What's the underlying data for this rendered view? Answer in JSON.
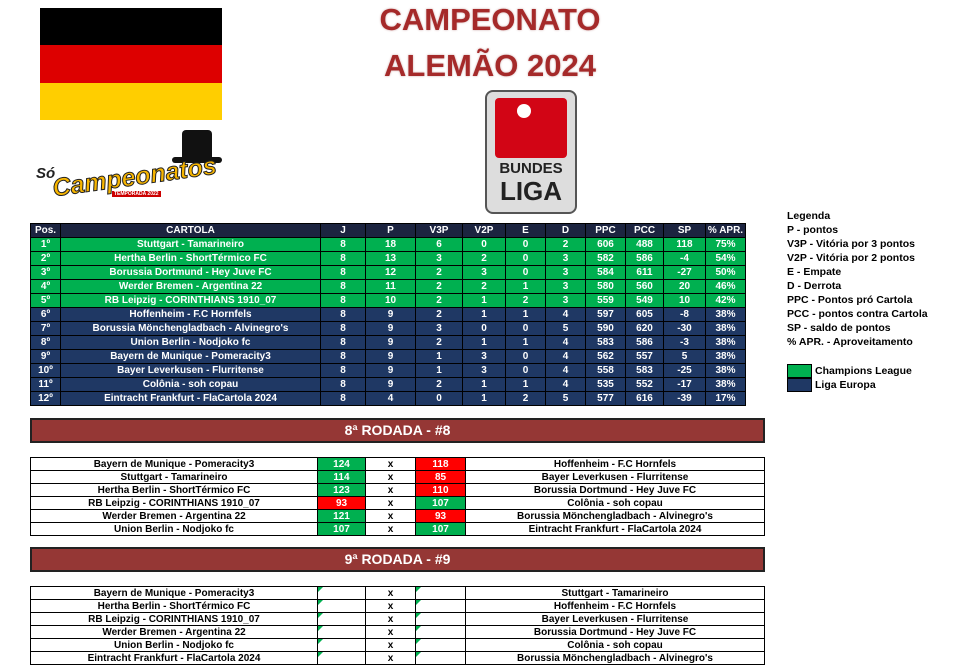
{
  "header": {
    "title_line1": "CAMPEONATO",
    "title_line2": "ALEMÃO 2024",
    "logo_small": "Só",
    "logo_main": "Campeonatos",
    "logo_season": "TEMPORADA 2022",
    "league_logo_top": "BUNDES",
    "league_logo_bottom": "LIGA"
  },
  "standings": {
    "columns": [
      "Pos.",
      "CARTOLA",
      "J",
      "P",
      "V3P",
      "V2P",
      "E",
      "D",
      "PPC",
      "PCC",
      "SP",
      "% APR."
    ],
    "rows": [
      {
        "color": "#00b050",
        "cells": [
          "1º",
          "Stuttgart - Tamarineiro",
          8,
          18,
          6,
          0,
          0,
          2,
          606,
          488,
          118,
          "75%"
        ]
      },
      {
        "color": "#00b050",
        "cells": [
          "2º",
          "Hertha Berlin - ShortTérmico FC",
          8,
          13,
          3,
          2,
          0,
          3,
          582,
          586,
          -4,
          "54%"
        ]
      },
      {
        "color": "#00b050",
        "cells": [
          "3º",
          "Borussia Dortmund - Hey Juve FC",
          8,
          12,
          2,
          3,
          0,
          3,
          584,
          611,
          -27,
          "50%"
        ]
      },
      {
        "color": "#00b050",
        "cells": [
          "4º",
          "Werder Bremen - Argentina 22",
          8,
          11,
          2,
          2,
          1,
          3,
          580,
          560,
          20,
          "46%"
        ]
      },
      {
        "color": "#00b050",
        "cells": [
          "5º",
          "RB Leipzig - CORINTHIANS 1910_07",
          8,
          10,
          2,
          1,
          2,
          3,
          559,
          549,
          10,
          "42%"
        ]
      },
      {
        "color": "#1f3864",
        "cells": [
          "6º",
          "Hoffenheim - F.C Hornfels",
          8,
          9,
          2,
          1,
          1,
          4,
          597,
          605,
          -8,
          "38%"
        ]
      },
      {
        "color": "#1f3864",
        "cells": [
          "7º",
          "Borussia Mönchengladbach - Alvinegro's",
          8,
          9,
          3,
          0,
          0,
          5,
          590,
          620,
          -30,
          "38%"
        ]
      },
      {
        "color": "#1f3864",
        "cells": [
          "8º",
          "Union Berlin - Nodjoko fc",
          8,
          9,
          2,
          1,
          1,
          4,
          583,
          586,
          -3,
          "38%"
        ]
      },
      {
        "color": "#1f3864",
        "cells": [
          "9º",
          "Bayern de Munique - Pomeracity3",
          8,
          9,
          1,
          3,
          0,
          4,
          562,
          557,
          5,
          "38%"
        ]
      },
      {
        "color": "#1f3864",
        "cells": [
          "10º",
          "Bayer Leverkusen - Flurritense",
          8,
          9,
          1,
          3,
          0,
          4,
          558,
          583,
          -25,
          "38%"
        ]
      },
      {
        "color": "#1f3864",
        "cells": [
          "11º",
          "Colônia - soh copau",
          8,
          9,
          2,
          1,
          1,
          4,
          535,
          552,
          -17,
          "38%"
        ]
      },
      {
        "color": "#1f3864",
        "cells": [
          "12º",
          "Eintracht Frankfurt - FlaCartola 2024",
          8,
          4,
          0,
          1,
          2,
          5,
          577,
          616,
          -39,
          "17%"
        ]
      }
    ]
  },
  "legend": {
    "title": "Legenda",
    "items": [
      "P - pontos",
      "V3P - Vitória por 3 pontos",
      "V2P - Vitória por 2 pontos",
      "E - Empate",
      "D - Derrota",
      "PPC - Pontos pró Cartola",
      "PCC - pontos contra Cartola",
      "SP - saldo de pontos",
      "% APR. - Aproveitamento"
    ],
    "zones": [
      {
        "color": "#00b050",
        "label": "Champions League"
      },
      {
        "color": "#1f3864",
        "label": "Liga Europa"
      }
    ]
  },
  "rounds": [
    {
      "title": "8ª RODADA - #8",
      "separator": "x",
      "matches": [
        {
          "home": "Bayern de Munique - Pomeracity3",
          "home_score": 124,
          "away_score": 118,
          "away": "Hoffenheim - F.C Hornfels"
        },
        {
          "home": "Stuttgart - Tamarineiro",
          "home_score": 114,
          "away_score": 85,
          "away": "Bayer Leverkusen - Flurritense"
        },
        {
          "home": "Hertha Berlin - ShortTérmico FC",
          "home_score": 123,
          "away_score": 110,
          "away": "Borussia Dortmund - Hey Juve FC"
        },
        {
          "home": "RB Leipzig - CORINTHIANS 1910_07",
          "home_score": 93,
          "away_score": 107,
          "away": "Colônia - soh copau"
        },
        {
          "home": "Werder Bremen - Argentina 22",
          "home_score": 121,
          "away_score": 93,
          "away": "Borussia Mönchengladbach - Alvinegro's"
        },
        {
          "home": "Union Berlin - Nodjoko fc",
          "home_score": 107,
          "away_score": 107,
          "away": "Eintracht Frankfurt - FlaCartola 2024"
        }
      ]
    },
    {
      "title": "9ª RODADA - #9",
      "separator": "x",
      "matches": [
        {
          "home": "Bayern de Munique - Pomeracity3",
          "away": "Stuttgart - Tamarineiro"
        },
        {
          "home": "Hertha Berlin - ShortTérmico FC",
          "away": "Hoffenheim - F.C Hornfels"
        },
        {
          "home": "RB Leipzig - CORINTHIANS 1910_07",
          "away": "Bayer Leverkusen - Flurritense"
        },
        {
          "home": "Werder Bremen - Argentina 22",
          "away": "Borussia Dortmund - Hey Juve FC"
        },
        {
          "home": "Union Berlin - Nodjoko fc",
          "away": "Colônia - soh copau"
        },
        {
          "home": "Eintracht Frankfurt - FlaCartola 2024",
          "away": "Borussia Mönchengladbach - Alvinegro's"
        }
      ]
    }
  ]
}
